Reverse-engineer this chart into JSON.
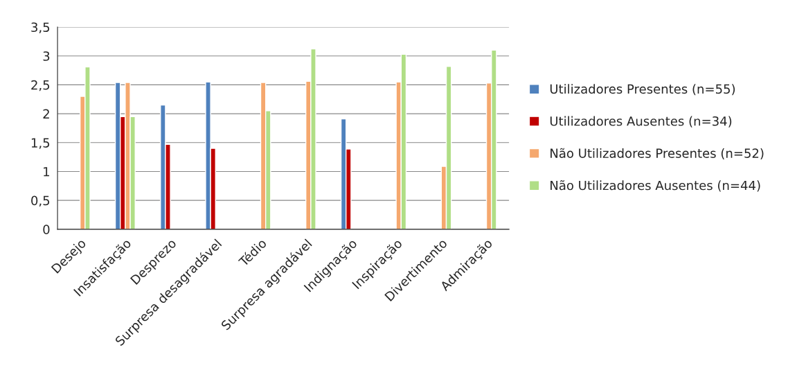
{
  "chart_data": {
    "type": "bar",
    "categories": [
      "Desejo",
      "Insatisfação",
      "Desprezo",
      "Surpresa desagradável",
      "Tédio",
      "Surpresa agradável",
      "Indignação",
      "Inspiração",
      "Divertimento",
      "Admiração"
    ],
    "series": [
      {
        "name": "Utilizadores Presentes (n=55)",
        "color": "#4f81bd",
        "values": [
          null,
          2.54,
          2.15,
          2.55,
          null,
          null,
          1.91,
          null,
          null,
          null
        ]
      },
      {
        "name": "Utilizadores Ausentes (n=34)",
        "color": "#c00000",
        "values": [
          null,
          1.95,
          1.47,
          1.4,
          null,
          null,
          1.39,
          null,
          null,
          null
        ]
      },
      {
        "name": "Não Utilizadores Presentes (n=52)",
        "color": "#f5a86e",
        "values": [
          2.3,
          2.54,
          null,
          null,
          2.54,
          2.56,
          null,
          2.55,
          1.09,
          2.53
        ]
      },
      {
        "name": "Não Utilizadores Ausentes (n=44)",
        "color": "#b0de86",
        "values": [
          2.81,
          1.95,
          null,
          null,
          2.05,
          3.12,
          null,
          3.03,
          2.82,
          3.1
        ]
      }
    ],
    "ylim": [
      0,
      3.5
    ],
    "yticks": [
      0,
      {
        "value": 0.5,
        "label": "0,5"
      },
      1,
      {
        "value": 1.5,
        "label": "1,5"
      },
      2,
      {
        "value": 2.5,
        "label": "2,5"
      },
      3,
      {
        "value": 3.5,
        "label": "3,5"
      }
    ],
    "grid": "y",
    "legend": "right"
  }
}
